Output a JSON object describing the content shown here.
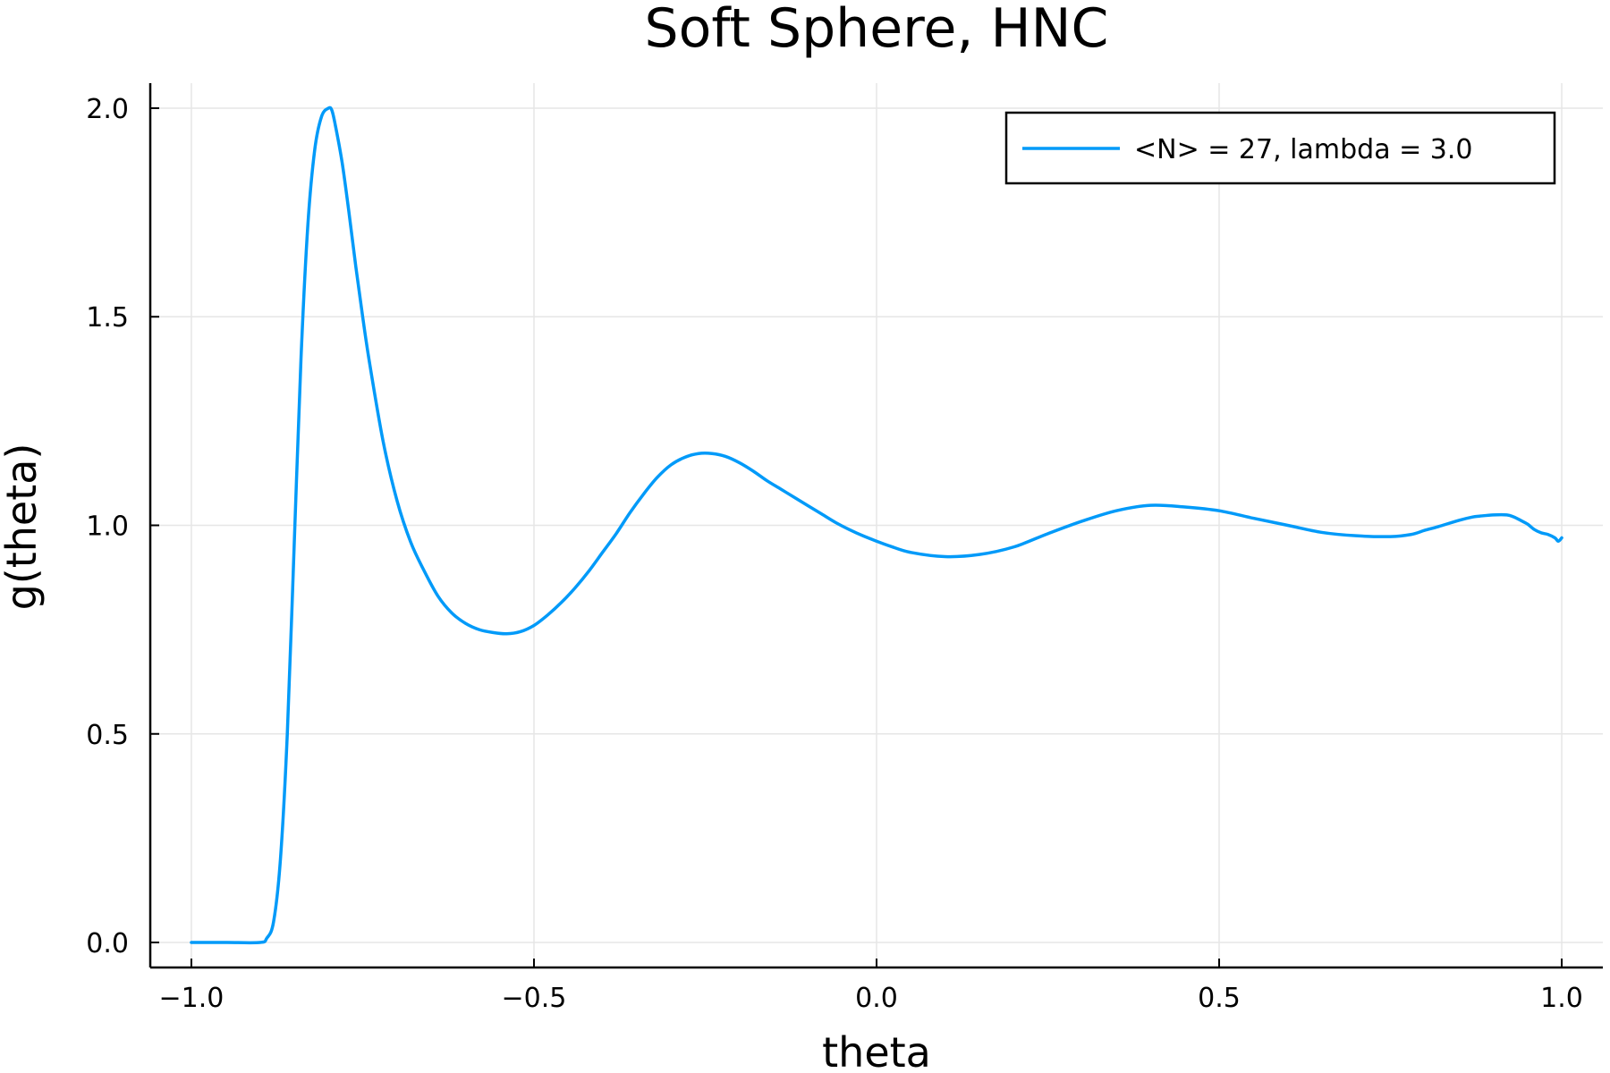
{
  "chart_data": {
    "type": "line",
    "title": "Soft Sphere, HNC",
    "xlabel": "theta",
    "ylabel": "g(theta)",
    "xlim": [
      -1.06,
      1.06
    ],
    "ylim": [
      -0.06,
      2.06
    ],
    "xticks": [
      -1.0,
      -0.5,
      0.0,
      0.5,
      1.0
    ],
    "xtick_labels": [
      "−1.0",
      "−0.5",
      "0.0",
      "0.5",
      "1.0"
    ],
    "yticks": [
      0.0,
      0.5,
      1.0,
      1.5,
      2.0
    ],
    "ytick_labels": [
      "0.0",
      "0.5",
      "1.0",
      "1.5",
      "2.0"
    ],
    "grid": true,
    "legend_position": "top-right",
    "colors": {
      "series": "#009af9",
      "axis": "#000000",
      "grid": "#e6e6e6"
    },
    "series": [
      {
        "name": "<N> = 27, lambda = 3.0",
        "color": "#009af9",
        "x": [
          -1.0,
          -0.95,
          -0.9,
          -0.89,
          -0.88,
          -0.87,
          -0.86,
          -0.85,
          -0.84,
          -0.83,
          -0.82,
          -0.81,
          -0.8,
          -0.795,
          -0.79,
          -0.78,
          -0.77,
          -0.76,
          -0.75,
          -0.74,
          -0.72,
          -0.7,
          -0.68,
          -0.66,
          -0.64,
          -0.62,
          -0.6,
          -0.58,
          -0.56,
          -0.54,
          -0.52,
          -0.5,
          -0.48,
          -0.46,
          -0.44,
          -0.42,
          -0.4,
          -0.38,
          -0.36,
          -0.34,
          -0.32,
          -0.3,
          -0.28,
          -0.26,
          -0.24,
          -0.22,
          -0.2,
          -0.18,
          -0.16,
          -0.14,
          -0.12,
          -0.1,
          -0.08,
          -0.06,
          -0.04,
          -0.02,
          0.0,
          0.02,
          0.05,
          0.1,
          0.15,
          0.2,
          0.25,
          0.3,
          0.35,
          0.4,
          0.45,
          0.5,
          0.55,
          0.6,
          0.65,
          0.7,
          0.75,
          0.78,
          0.8,
          0.82,
          0.85,
          0.87,
          0.88,
          0.9,
          0.92,
          0.93,
          0.94,
          0.95,
          0.96,
          0.97,
          0.98,
          0.99,
          0.995,
          1.0
        ],
        "y": [
          0.0,
          0.0,
          0.0,
          0.01,
          0.05,
          0.2,
          0.5,
          0.95,
          1.4,
          1.72,
          1.9,
          1.98,
          2.0,
          1.995,
          1.96,
          1.87,
          1.75,
          1.62,
          1.5,
          1.39,
          1.2,
          1.06,
          0.96,
          0.89,
          0.83,
          0.79,
          0.765,
          0.75,
          0.743,
          0.74,
          0.745,
          0.76,
          0.785,
          0.815,
          0.85,
          0.89,
          0.935,
          0.98,
          1.03,
          1.075,
          1.115,
          1.145,
          1.163,
          1.172,
          1.172,
          1.165,
          1.15,
          1.13,
          1.107,
          1.087,
          1.067,
          1.047,
          1.027,
          1.007,
          0.99,
          0.975,
          0.962,
          0.95,
          0.935,
          0.925,
          0.93,
          0.948,
          0.98,
          1.01,
          1.035,
          1.048,
          1.044,
          1.035,
          1.017,
          1.0,
          0.983,
          0.975,
          0.973,
          0.978,
          0.988,
          0.997,
          1.012,
          1.02,
          1.022,
          1.025,
          1.025,
          1.02,
          1.012,
          1.003,
          0.99,
          0.982,
          0.978,
          0.97,
          0.962,
          0.97
        ]
      }
    ]
  }
}
